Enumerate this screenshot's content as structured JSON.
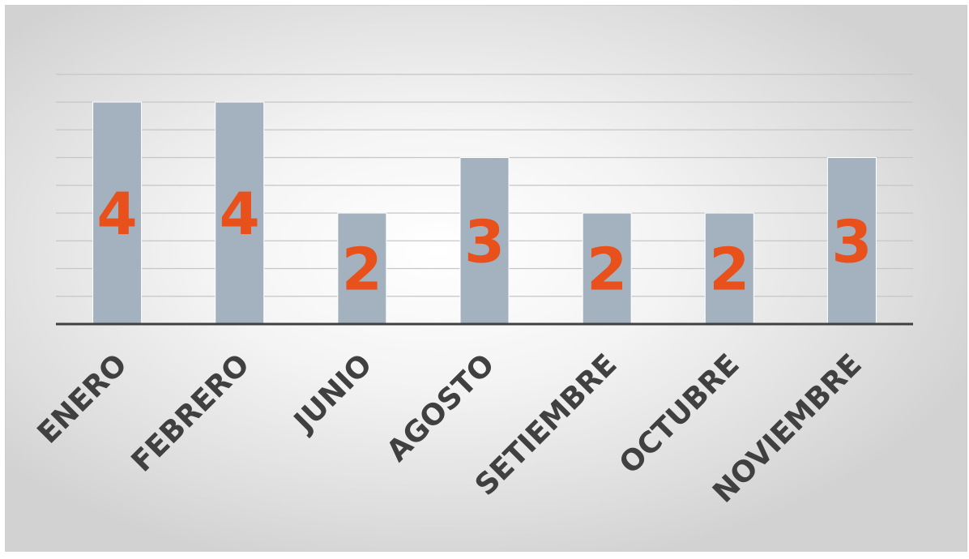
{
  "chart_data": {
    "type": "bar",
    "categories": [
      "ENERO",
      "FEBRERO",
      "JUNIO",
      "AGOSTO",
      "SETIEMBRE",
      "OCTUBRE",
      "NOVIEMBRE"
    ],
    "values": [
      4,
      4,
      2,
      3,
      2,
      2,
      3
    ],
    "title": "",
    "xlabel": "",
    "ylabel": "",
    "ylim": [
      0,
      4.5
    ],
    "grid": true,
    "legend": "none",
    "colors": {
      "bar": "#a4b2bf",
      "data_label": "#e8501c",
      "category_label": "#404040"
    }
  }
}
